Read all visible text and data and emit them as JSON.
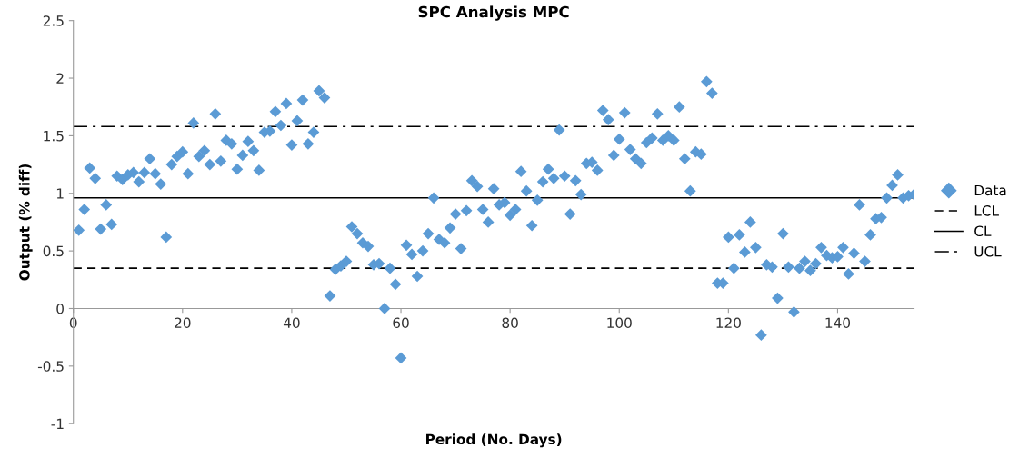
{
  "chart_data": {
    "type": "scatter",
    "title": "SPC Analysis MPC",
    "xlabel": "Period (No. Days)",
    "ylabel": "Output (% diff)",
    "xlim": [
      0,
      154
    ],
    "xticks": [
      0,
      20,
      40,
      60,
      80,
      100,
      120,
      140
    ],
    "ylim": [
      -1,
      2.5
    ],
    "yticks": [
      -1,
      -0.5,
      0,
      0.5,
      1,
      1.5,
      2,
      2.5
    ],
    "grid": false,
    "legend": "right",
    "marker": "diamond",
    "series": [
      {
        "name": "Data",
        "color": "#5b9bd5",
        "x": [
          1,
          2,
          3,
          4,
          5,
          6,
          7,
          8,
          9,
          10,
          11,
          12,
          13,
          14,
          15,
          16,
          17,
          18,
          19,
          20,
          21,
          22,
          23,
          24,
          25,
          26,
          27,
          28,
          29,
          30,
          31,
          32,
          33,
          34,
          35,
          36,
          37,
          38,
          39,
          40,
          41,
          42,
          43,
          44,
          45,
          46,
          47,
          48,
          49,
          50,
          51,
          52,
          53,
          54,
          55,
          56,
          57,
          58,
          59,
          60,
          61,
          62,
          63,
          64,
          65,
          66,
          67,
          68,
          69,
          70,
          71,
          72,
          73,
          74,
          75,
          76,
          77,
          78,
          79,
          80,
          81,
          82,
          83,
          84,
          85,
          86,
          87,
          88,
          89,
          90,
          91,
          92,
          93,
          94,
          95,
          96,
          97,
          98,
          99,
          100,
          101,
          102,
          103,
          104,
          105,
          106,
          107,
          108,
          109,
          110,
          111,
          112,
          113,
          114,
          115,
          116,
          117,
          118,
          119,
          120,
          121,
          122,
          123,
          124,
          125,
          126,
          127,
          128,
          129,
          130,
          131,
          132,
          133,
          134,
          135,
          136,
          137,
          138,
          139,
          140,
          141,
          142,
          143,
          144,
          145,
          146,
          147,
          148,
          149,
          150,
          151,
          152,
          153,
          154
        ],
        "values": [
          0.68,
          0.86,
          1.22,
          1.13,
          0.69,
          0.9,
          0.73,
          1.15,
          1.12,
          1.16,
          1.18,
          1.1,
          1.18,
          1.3,
          1.17,
          1.08,
          0.62,
          1.25,
          1.32,
          1.36,
          1.17,
          1.61,
          1.32,
          1.37,
          1.25,
          1.69,
          1.28,
          1.46,
          1.43,
          1.21,
          1.33,
          1.45,
          1.37,
          1.2,
          1.53,
          1.54,
          1.71,
          1.59,
          1.78,
          1.42,
          1.63,
          1.81,
          1.43,
          1.53,
          1.89,
          1.83,
          0.11,
          0.34,
          0.37,
          0.41,
          0.71,
          0.65,
          0.57,
          0.54,
          0.38,
          0.39,
          0.0,
          0.35,
          0.21,
          -0.43,
          0.55,
          0.47,
          0.28,
          0.5,
          0.65,
          0.96,
          0.6,
          0.57,
          0.7,
          0.82,
          0.52,
          0.85,
          1.11,
          1.06,
          0.86,
          0.75,
          1.04,
          0.9,
          0.92,
          0.81,
          0.86,
          1.19,
          1.02,
          0.72,
          0.94,
          1.1,
          1.21,
          1.13,
          1.55,
          1.15,
          0.82,
          1.11,
          0.99,
          1.26,
          1.27,
          1.2,
          1.72,
          1.64,
          1.33,
          1.47,
          1.7,
          1.38,
          1.3,
          1.26,
          1.44,
          1.48,
          1.69,
          1.46,
          1.5,
          1.46,
          1.75,
          1.3,
          1.02,
          1.36,
          1.34,
          1.97,
          1.87,
          0.22,
          0.22,
          0.62,
          0.35,
          0.64,
          0.49,
          0.75,
          0.53,
          -0.23,
          0.38,
          0.36,
          0.09,
          0.65,
          0.36,
          -0.03,
          0.35,
          0.41,
          0.33,
          0.39,
          0.53,
          0.46,
          0.44,
          0.45,
          0.53,
          0.3,
          0.48,
          0.9,
          0.41,
          0.64,
          0.78,
          0.79,
          0.96,
          1.07,
          1.16,
          0.96,
          0.98,
          0.99
        ]
      }
    ],
    "ref_lines": [
      {
        "axis": "y",
        "value": 0.35,
        "label": "LCL",
        "color": "#000000",
        "line_style": "dashed"
      },
      {
        "axis": "y",
        "value": 0.96,
        "label": "CL",
        "color": "#000000",
        "line_style": "solid"
      },
      {
        "axis": "y",
        "value": 1.58,
        "label": "UCL",
        "color": "#000000",
        "line_style": "dashdot"
      }
    ]
  }
}
